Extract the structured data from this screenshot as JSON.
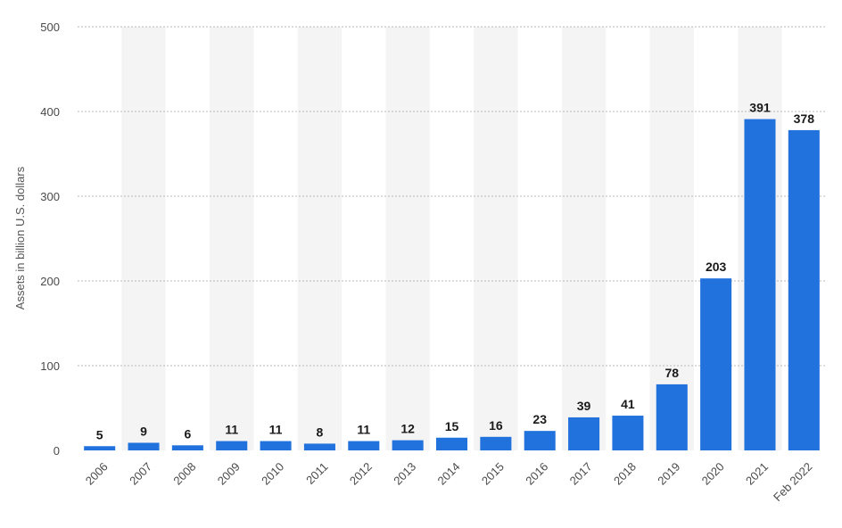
{
  "chart_data": {
    "type": "bar",
    "categories": [
      "2006",
      "2007",
      "2008",
      "2009",
      "2010",
      "2011",
      "2012",
      "2013",
      "2014",
      "2015",
      "2016",
      "2017",
      "2018",
      "2019",
      "2020",
      "2021",
      "Feb 2022"
    ],
    "values": [
      5,
      9,
      6,
      11,
      11,
      8,
      11,
      12,
      15,
      16,
      23,
      39,
      41,
      78,
      203,
      391,
      378
    ],
    "ylabel": "Assets in billion U.S. dollars",
    "ylim": [
      0,
      500
    ],
    "yticks": [
      0,
      100,
      200,
      300,
      400,
      500
    ],
    "grid": true,
    "colors": {
      "bar": "#2272de",
      "band": "#f4f4f4",
      "grid": "#b8b8b8"
    }
  }
}
